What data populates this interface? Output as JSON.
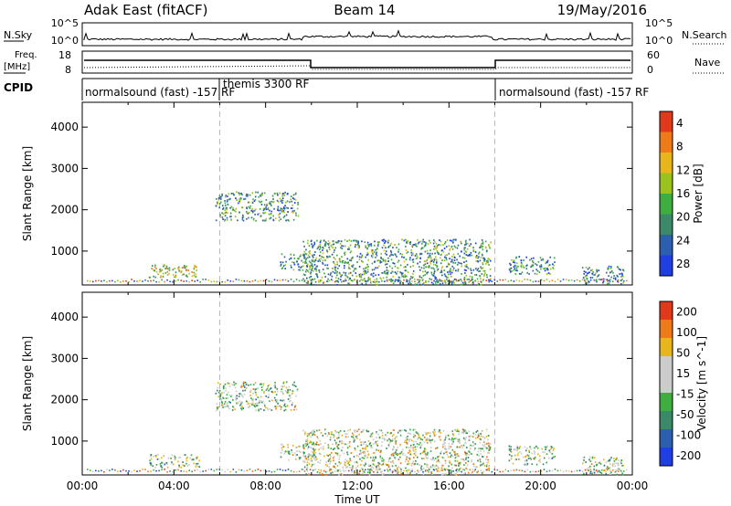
{
  "header": {
    "radar": "Adak East (fitACF)",
    "beam": "Beam 14",
    "date": "19/May/2016"
  },
  "status_panels": {
    "nsky_label": "N.Sky",
    "nsearch_label": "N.Search",
    "nsky_ticks": [
      "10^5",
      "10^0"
    ],
    "nsearch_ticks": [
      "10^5",
      "10^0"
    ],
    "freq_label_1": "Freq.",
    "freq_label_2": "[MHz]",
    "freq_ticks": [
      "18",
      "8"
    ],
    "nave_label": "Nave",
    "nave_ticks": [
      "60",
      "0"
    ],
    "cpid_label": "CPID",
    "cpid_segments": [
      {
        "label": "normalsound (fast) -157 RF",
        "start_h": 0,
        "end_h": 6
      },
      {
        "label": "themis 3300 RF",
        "start_h": 6,
        "end_h": 18
      },
      {
        "label": "normalsound (fast) -157 RF",
        "start_h": 18,
        "end_h": 24
      }
    ]
  },
  "chart_data": [
    {
      "type": "heatmap",
      "title": "",
      "xlabel": "Time UT",
      "ylabel": "Slant Range [km]",
      "x_range_h": [
        0,
        24
      ],
      "x_tick_labels": [
        "00:00",
        "04:00",
        "08:00",
        "12:00",
        "16:00",
        "20:00",
        "00:00"
      ],
      "ylim": [
        180,
        4600
      ],
      "y_ticks": [
        1000,
        2000,
        3000,
        4000
      ],
      "colorbar_label": "Power [dB]",
      "colorbar_ticks": [
        "4",
        "8",
        "12",
        "16",
        "20",
        "24",
        "28"
      ],
      "colors": [
        "#1f3fe0",
        "#2c5fb0",
        "#3a8a6a",
        "#3fae3f",
        "#9cc21f",
        "#e8b51c",
        "#ef7a1a",
        "#e03a1a"
      ],
      "regions": [
        {
          "t0": 2.9,
          "t1": 5.1,
          "r0": 380,
          "r1": 700,
          "level": 0.55
        },
        {
          "t0": 5.8,
          "t1": 9.4,
          "r0": 1750,
          "r1": 2450,
          "level": 0.35
        },
        {
          "t0": 8.6,
          "t1": 10.2,
          "r0": 550,
          "r1": 950,
          "level": 0.3
        },
        {
          "t0": 9.6,
          "t1": 17.8,
          "r0": 200,
          "r1": 1300,
          "level": 0.35
        },
        {
          "t0": 18.6,
          "t1": 20.6,
          "r0": 450,
          "r1": 900,
          "level": 0.3
        },
        {
          "t0": 21.8,
          "t1": 23.6,
          "r0": 200,
          "r1": 650,
          "level": 0.25
        }
      ]
    },
    {
      "type": "heatmap",
      "title": "",
      "xlabel": "Time UT",
      "ylabel": "Slant Range [km]",
      "x_range_h": [
        0,
        24
      ],
      "x_tick_labels": [
        "00:00",
        "04:00",
        "08:00",
        "12:00",
        "16:00",
        "20:00",
        "00:00"
      ],
      "ylim": [
        180,
        4600
      ],
      "y_ticks": [
        1000,
        2000,
        3000,
        4000
      ],
      "colorbar_label": "Velocity [m s^-1]",
      "colorbar_ticks": [
        "200",
        "100",
        "50",
        "15",
        "-15",
        "-50",
        "-100",
        "-200"
      ],
      "colors": [
        "#1f3fe0",
        "#2c5fb0",
        "#3a8a6a",
        "#3fae3f",
        "#cccccc",
        "#cccccc",
        "#e8b51c",
        "#ef7a1a",
        "#e03a1a"
      ],
      "regions": [
        {
          "t0": 2.9,
          "t1": 5.1,
          "r0": 380,
          "r1": 700,
          "level": 0.5
        },
        {
          "t0": 5.8,
          "t1": 9.4,
          "r0": 1750,
          "r1": 2450,
          "level": 0.5
        },
        {
          "t0": 8.6,
          "t1": 10.2,
          "r0": 550,
          "r1": 950,
          "level": 0.5
        },
        {
          "t0": 9.6,
          "t1": 17.8,
          "r0": 200,
          "r1": 1300,
          "level": 0.55
        },
        {
          "t0": 18.6,
          "t1": 20.6,
          "r0": 450,
          "r1": 900,
          "level": 0.5
        },
        {
          "t0": 21.8,
          "t1": 23.6,
          "r0": 200,
          "r1": 650,
          "level": 0.5
        }
      ]
    }
  ]
}
